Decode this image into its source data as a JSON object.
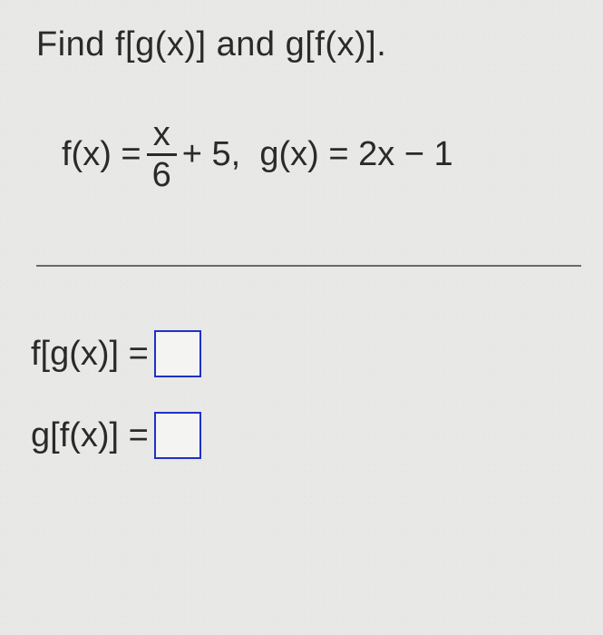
{
  "prompt": "Find f[g(x)] and g[f(x)].",
  "functions": {
    "f_lhs": "f(x) =",
    "fraction": {
      "numerator": "x",
      "denominator": "6"
    },
    "f_rhs_after_frac": "+ 5,",
    "spacer": "  ",
    "g_def": "g(x) = 2x − 1"
  },
  "answers": {
    "fg_label": "f[g(x)] =",
    "gf_label": "g[f(x)] ="
  },
  "style": {
    "background_color": "#e8e8e6",
    "text_color": "#2a2a2a",
    "box_border_color": "#2030c8",
    "rule_color": "#6a6a6a",
    "font_size_pt": 29
  }
}
